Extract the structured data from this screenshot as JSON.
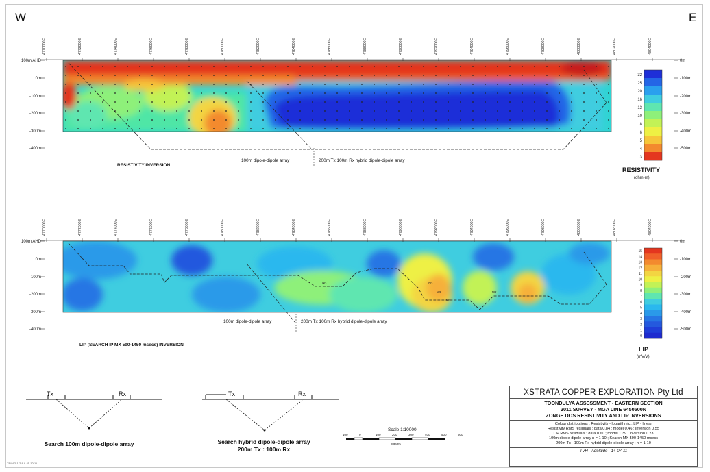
{
  "orientation": {
    "west": "W",
    "east": "E"
  },
  "eastings": [
    "4770000E",
    "4772000E",
    "4774000E",
    "4776000E",
    "4778000E",
    "4780000E",
    "4782000E",
    "4784000E",
    "4786000E",
    "4788000E",
    "4790000E",
    "4792000E",
    "4794000E",
    "4796000E",
    "4798000E",
    "4800000E",
    "4802000E",
    "4804000E"
  ],
  "depth_labels_left": [
    "100m AHD",
    "0m",
    "-100m",
    "-200m",
    "-300m",
    "-400m"
  ],
  "depth_labels_right": [
    "0m",
    "-100m",
    "-200m",
    "-300m",
    "-400m",
    "-500m"
  ],
  "resistivity": {
    "caption": "RESISTIVITY INVERSION",
    "array_left": "100m dipole-dipole array",
    "array_right": "200m Tx 100m Rx hybrid dipole-dipole array",
    "colorbar_title": "RESISTIVITY",
    "colorbar_unit": "(ohm-m)",
    "colorbar_ticks": [
      "32",
      "25",
      "20",
      "16",
      "13",
      "10",
      "8",
      "6",
      "5",
      "4",
      "3"
    ],
    "colorbar_colors": [
      "#1e2fd8",
      "#2466e6",
      "#2aa0ee",
      "#3fcde0",
      "#5fe6b0",
      "#8ef07a",
      "#c2f256",
      "#eef044",
      "#f6c63a",
      "#f38a2e",
      "#e4361f"
    ]
  },
  "lip": {
    "caption": "LIP (SEARCH IP MX 590-1450 msecs) INVERSION",
    "array_left": "100m dipole-dipole array",
    "array_right": "200m Tx 100m Rx hybrid dipole-dipole array",
    "colorbar_title": "LIP",
    "colorbar_unit": "(mV/V)",
    "colorbar_ticks": [
      "15",
      "14",
      "13",
      "12",
      "11",
      "10",
      "9",
      "8",
      "7",
      "6",
      "5",
      "4",
      "3",
      "2",
      "1",
      "0"
    ],
    "colorbar_colors": [
      "#e4361f",
      "#f0602a",
      "#f38a2e",
      "#f6b03a",
      "#f3d542",
      "#eef044",
      "#c2f256",
      "#8ef07a",
      "#5fe6b0",
      "#3fcde0",
      "#2ab8ee",
      "#2a9ae9",
      "#2676e4",
      "#2459de",
      "#1f3ed8",
      "#1e2bcf"
    ]
  },
  "arrays": {
    "tx": "Tx",
    "rx": "Rx",
    "search_caption": "Search 100m dipole-dipole array",
    "hybrid_caption_1": "Search hybrid dipole-dipole array",
    "hybrid_caption_2": "200m Tx : 100m Rx"
  },
  "scale": {
    "label": "Scale 1:10000",
    "unit": "metres",
    "ticks": [
      "100",
      "0",
      "100",
      "200",
      "300",
      "400",
      "500",
      "600"
    ]
  },
  "info": {
    "company": "XSTRATA COPPER EXPLORATION Pty Ltd",
    "line1": "TOONDULYA ASSESSMENT - EASTERN SECTION",
    "line2": "2011 SURVEY - MGA LINE 6450500N",
    "line3": "ZONGE DOS RESISTIVITY AND LIP INVERSIONS",
    "note1": "Colour distributions : Resistivity - logarithmic ; LIP - linear",
    "note2": "Resistivity RMS residuals : data 0.84 ; model 0.46 ; inversion 0.55",
    "note3": "LIP RMS residuals : data 0.60 ; model 1.39 ; inversion 0.23",
    "note4": "100m dipole-dipole array n = 1-10 ; Search MX 590-1450 msecs",
    "note5": "200m Tx - 100m Rx hybrid dipole-dipole array ; n = 1-10",
    "footer": "TVH - Adelaide - 14-07-11"
  },
  "nr_labels": [
    "NR",
    "NR",
    "NR",
    "NR",
    "NR"
  ],
  "file_ref": "TRIM 2-1-2-8 L-45-10-11"
}
